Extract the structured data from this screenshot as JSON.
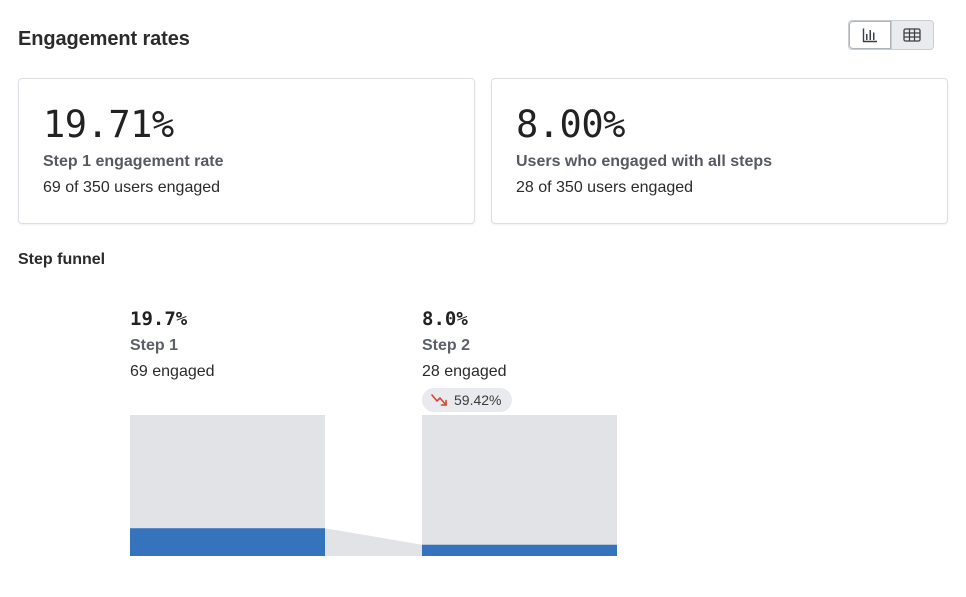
{
  "header": {
    "title": "Engagement rates",
    "view_toggle": {
      "chart_icon": "bar-chart-icon",
      "table_icon": "table-icon",
      "selected": "chart"
    }
  },
  "summary_cards": [
    {
      "value": "19.71%",
      "label": "Step 1 engagement rate",
      "detail": "69 of 350 users engaged"
    },
    {
      "value": "8.00%",
      "label": "Users who engaged with all steps",
      "detail": "28 of 350 users engaged"
    }
  ],
  "funnel": {
    "title": "Step funnel",
    "steps": [
      {
        "percent": "19.7%",
        "name": "Step 1",
        "engaged": "69 engaged"
      },
      {
        "percent": "8.0%",
        "name": "Step 2",
        "engaged": "28 engaged"
      }
    ],
    "dropoff": {
      "value": "59.42%",
      "icon": "trend-down-icon",
      "color": "#d9432f"
    }
  },
  "colors": {
    "bar_fill": "#3574bd",
    "bar_track": "#e1e3e6",
    "connector": "#e1e3e6"
  },
  "chart_data": {
    "type": "bar",
    "categories": [
      "Step 1",
      "Step 2"
    ],
    "series": [
      {
        "values": [
          19.7,
          8.0
        ]
      }
    ],
    "ylim": [
      0,
      100
    ],
    "unit": "%",
    "grid": false
  }
}
